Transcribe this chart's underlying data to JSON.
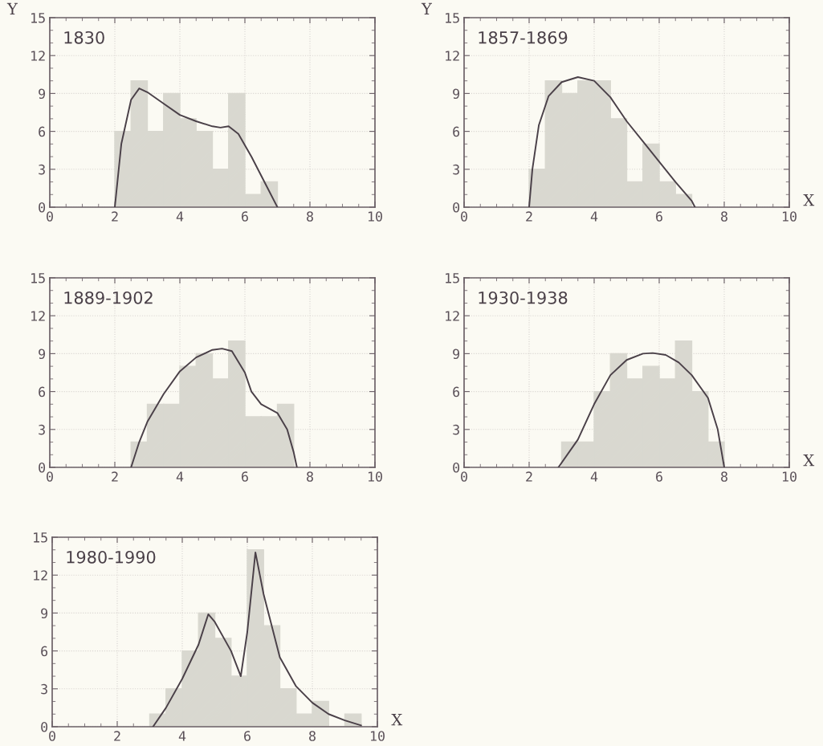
{
  "chart_data": [
    {
      "type": "histogram",
      "title": "1830",
      "ylabel": "Y",
      "bins": [
        2,
        2.5,
        3,
        3.5,
        4,
        4.5,
        5,
        5.5,
        6,
        6.5,
        7
      ],
      "values": [
        6,
        10,
        6,
        9,
        7,
        6,
        3,
        9,
        1,
        2
      ],
      "color": "#d9d8d0",
      "xlim": [
        0,
        10
      ],
      "ylim": [
        0,
        15
      ],
      "xticks": [
        0,
        2,
        4,
        6,
        8,
        10
      ],
      "yticks": [
        0,
        3,
        6,
        9,
        12,
        15
      ],
      "grid": true,
      "series": [
        {
          "type": "line",
          "color": "#4a4048",
          "x": [
            2,
            2.2,
            2.5,
            2.75,
            3,
            3.5,
            4,
            4.5,
            5,
            5.25,
            5.5,
            5.8,
            6.2,
            6.6,
            7
          ],
          "values": [
            0,
            5,
            8.5,
            9.4,
            9.1,
            8.2,
            7.3,
            6.8,
            6.4,
            6.3,
            6.4,
            5.8,
            4,
            2,
            0
          ]
        }
      ]
    },
    {
      "type": "histogram",
      "title": "1857-1869",
      "ylabel": "Y",
      "xlabel": "X",
      "bins": [
        2,
        2.5,
        3,
        3.5,
        4,
        4.5,
        5,
        5.5,
        6,
        6.5,
        7
      ],
      "values": [
        3,
        10,
        9,
        10,
        10,
        7,
        2,
        5,
        2,
        1
      ],
      "color": "#d9d8d0",
      "xlim": [
        0,
        10
      ],
      "ylim": [
        0,
        15
      ],
      "xticks": [
        0,
        2,
        4,
        6,
        8,
        10
      ],
      "yticks": [
        0,
        3,
        6,
        9,
        12,
        15
      ],
      "grid": true,
      "series": [
        {
          "type": "line",
          "color": "#4a4048",
          "x": [
            2,
            2.1,
            2.3,
            2.6,
            3,
            3.5,
            4,
            4.5,
            5,
            5.5,
            6,
            6.5,
            7,
            7.1
          ],
          "values": [
            0,
            3,
            6.5,
            8.8,
            9.9,
            10.3,
            10,
            8.7,
            6.8,
            5.2,
            3.6,
            2,
            0.5,
            0
          ]
        }
      ]
    },
    {
      "type": "histogram",
      "title": "1889-1902",
      "bins": [
        2.5,
        3,
        3.5,
        4,
        4.5,
        5,
        5.5,
        6,
        6.5,
        7,
        7.5
      ],
      "values": [
        2,
        5,
        5,
        8,
        9,
        7,
        10,
        4,
        4,
        5
      ],
      "color": "#d9d8d0",
      "xlim": [
        0,
        10
      ],
      "ylim": [
        0,
        15
      ],
      "xticks": [
        0,
        2,
        4,
        6,
        8,
        10
      ],
      "yticks": [
        0,
        3,
        6,
        9,
        12,
        15
      ],
      "grid": true,
      "series": [
        {
          "type": "line",
          "color": "#4a4048",
          "x": [
            2.5,
            2.75,
            3,
            3.5,
            4,
            4.5,
            5,
            5.3,
            5.6,
            6,
            6.2,
            6.5,
            7,
            7.3,
            7.5,
            7.6
          ],
          "values": [
            0,
            2,
            3.6,
            5.8,
            7.6,
            8.7,
            9.3,
            9.4,
            9.2,
            7.5,
            6,
            5,
            4.3,
            3,
            1.2,
            0
          ]
        }
      ]
    },
    {
      "type": "histogram",
      "title": "1930-1938",
      "xlabel": "X",
      "bins": [
        3,
        3.5,
        4,
        4.5,
        5,
        5.5,
        6,
        6.5,
        7,
        7.5,
        8
      ],
      "values": [
        2,
        2,
        6,
        9,
        7,
        8,
        7,
        10,
        6,
        2
      ],
      "color": "#d9d8d0",
      "xlim": [
        0,
        10
      ],
      "ylim": [
        0,
        15
      ],
      "xticks": [
        0,
        2,
        4,
        6,
        8,
        10
      ],
      "yticks": [
        0,
        3,
        6,
        9,
        12,
        15
      ],
      "grid": true,
      "series": [
        {
          "type": "line",
          "color": "#4a4048",
          "x": [
            2.9,
            3.5,
            4,
            4.5,
            5,
            5.5,
            5.8,
            6.2,
            6.6,
            7,
            7.5,
            7.8,
            8
          ],
          "values": [
            0,
            2.2,
            5,
            7.3,
            8.5,
            9,
            9.05,
            8.9,
            8.3,
            7.3,
            5.5,
            3,
            0
          ]
        }
      ]
    },
    {
      "type": "histogram",
      "title": "1980-1990",
      "xlabel": "X",
      "bins": [
        3,
        3.5,
        4,
        4.5,
        5,
        5.5,
        6,
        6.5,
        7,
        7.5,
        8,
        8.5,
        9,
        9.5
      ],
      "values": [
        1,
        3,
        6,
        9,
        7,
        4,
        14,
        8,
        3,
        1,
        2,
        0,
        1
      ],
      "color": "#d9d8d0",
      "xlim": [
        0,
        10
      ],
      "ylim": [
        0,
        15
      ],
      "xticks": [
        0,
        2,
        4,
        6,
        8,
        10
      ],
      "yticks": [
        0,
        3,
        6,
        9,
        12,
        15
      ],
      "grid": true,
      "series": [
        {
          "type": "line",
          "color": "#4a4048",
          "x": [
            3.1,
            3.5,
            4,
            4.5,
            4.8,
            5,
            5.5,
            5.8,
            6,
            6.25,
            6.5,
            7,
            7.5,
            8,
            8.5,
            9,
            9.5
          ],
          "values": [
            0,
            1.5,
            3.8,
            6.5,
            8.9,
            8.3,
            6,
            4,
            7.5,
            13.8,
            10.5,
            5.5,
            3.2,
            1.9,
            1,
            0.5,
            0.1
          ]
        }
      ]
    }
  ]
}
